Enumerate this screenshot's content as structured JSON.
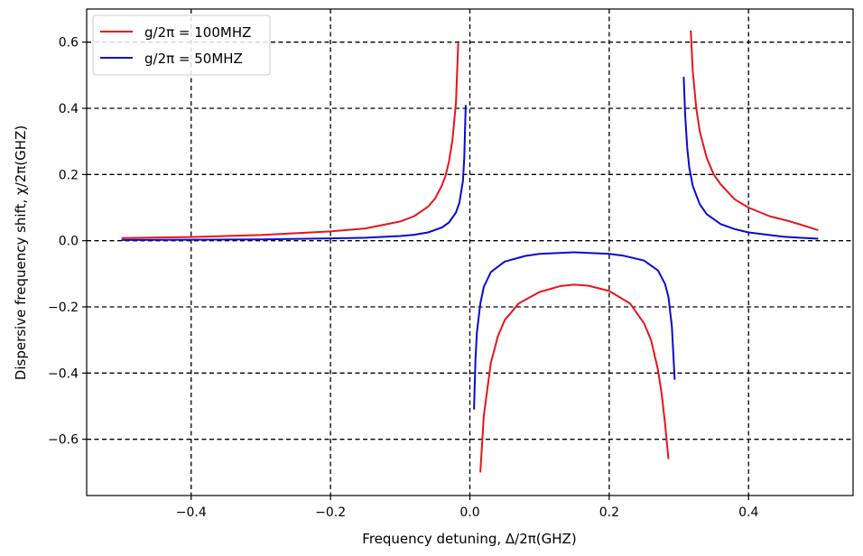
{
  "chart_data": {
    "type": "line",
    "xlabel": "Frequency detuning, Δ/2π(GHZ)",
    "ylabel": "Dispersive frequency shift, χ/2π(GHZ)",
    "xlim": [
      -0.55,
      0.55
    ],
    "ylim": [
      -0.77,
      0.7
    ],
    "xticks": [
      -0.4,
      -0.2,
      0.0,
      0.2,
      0.4
    ],
    "xtick_labels": [
      "−0.4",
      "−0.2",
      "0.0",
      "0.2",
      "0.4"
    ],
    "yticks": [
      -0.6,
      -0.4,
      -0.2,
      0.0,
      0.2,
      0.4,
      0.6
    ],
    "ytick_labels": [
      "−0.6",
      "−0.4",
      "−0.2",
      "0.0",
      "0.2",
      "0.4",
      "0.6"
    ],
    "grid": true,
    "legend_position": "top-left",
    "series": [
      {
        "name": "g/2π = 100MHZ",
        "color": "#e8141a",
        "segments": [
          {
            "x": [
              -0.5,
              -0.4,
              -0.3,
              -0.2,
              -0.15,
              -0.1,
              -0.08,
              -0.06,
              -0.05,
              -0.04,
              -0.035,
              -0.03,
              -0.025,
              -0.02,
              -0.0167
            ],
            "y": [
              0.008,
              0.011,
              0.017,
              0.028,
              0.037,
              0.058,
              0.074,
              0.103,
              0.127,
              0.167,
              0.196,
              0.238,
              0.303,
              0.417,
              0.597
            ]
          },
          {
            "x": [
              0.015,
              0.02,
              0.03,
              0.04,
              0.05,
              0.07,
              0.1,
              0.13,
              0.15,
              0.17,
              0.2,
              0.23,
              0.25,
              0.26,
              0.27,
              0.275,
              0.28,
              0.285
            ],
            "y": [
              -0.7,
              -0.53,
              -0.37,
              -0.29,
              -0.24,
              -0.19,
              -0.155,
              -0.137,
              -0.133,
              -0.136,
              -0.152,
              -0.19,
              -0.25,
              -0.3,
              -0.39,
              -0.46,
              -0.55,
              -0.66
            ]
          },
          {
            "x": [
              0.317,
              0.32,
              0.325,
              0.33,
              0.34,
              0.35,
              0.36,
              0.38,
              0.4,
              0.43,
              0.46,
              0.5
            ],
            "y": [
              0.635,
              0.51,
              0.4,
              0.33,
              0.25,
              0.2,
              0.17,
              0.125,
              0.1,
              0.074,
              0.058,
              0.032
            ]
          }
        ]
      },
      {
        "name": "g/2π = 50MHZ",
        "color": "#0a0ad2",
        "segments": [
          {
            "x": [
              -0.5,
              -0.4,
              -0.3,
              -0.2,
              -0.15,
              -0.1,
              -0.08,
              -0.06,
              -0.04,
              -0.03,
              -0.02,
              -0.015,
              -0.01,
              -0.008,
              -0.006
            ],
            "y": [
              0.002,
              0.003,
              0.004,
              0.007,
              0.009,
              0.014,
              0.018,
              0.025,
              0.04,
              0.055,
              0.085,
              0.115,
              0.18,
              0.25,
              0.41
            ]
          },
          {
            "x": [
              0.006,
              0.008,
              0.01,
              0.015,
              0.02,
              0.03,
              0.05,
              0.08,
              0.1,
              0.15,
              0.2,
              0.22,
              0.25,
              0.27,
              0.28,
              0.285,
              0.29,
              0.294
            ],
            "y": [
              -0.51,
              -0.36,
              -0.28,
              -0.19,
              -0.14,
              -0.095,
              -0.063,
              -0.046,
              -0.04,
              -0.035,
              -0.04,
              -0.045,
              -0.06,
              -0.09,
              -0.13,
              -0.17,
              -0.26,
              -0.42
            ]
          },
          {
            "x": [
              0.307,
              0.309,
              0.312,
              0.315,
              0.32,
              0.33,
              0.34,
              0.36,
              0.38,
              0.4,
              0.45,
              0.5
            ],
            "y": [
              0.495,
              0.38,
              0.28,
              0.22,
              0.165,
              0.11,
              0.08,
              0.05,
              0.035,
              0.025,
              0.012,
              0.006
            ]
          }
        ]
      }
    ]
  }
}
